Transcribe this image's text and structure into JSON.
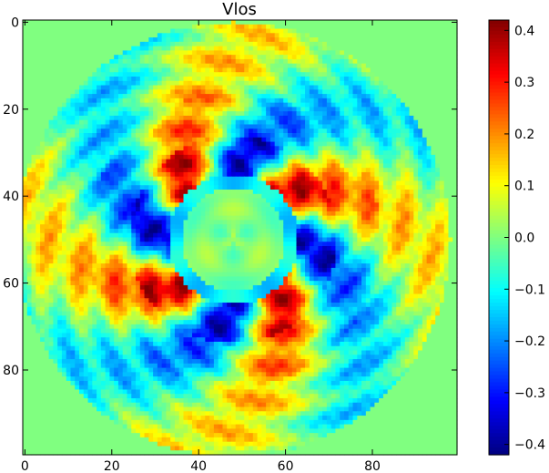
{
  "chart_data": {
    "type": "heatmap",
    "title": "Vlos",
    "xlabel": "",
    "ylabel": "",
    "grid_size": [
      100,
      100
    ],
    "x_ticks": [
      0,
      20,
      40,
      60,
      80
    ],
    "y_ticks": [
      0,
      20,
      40,
      60,
      80
    ],
    "xlim": [
      -0.5,
      99.5
    ],
    "ylim": [
      99.5,
      -0.5
    ],
    "y_axis_inverted": true,
    "background_value": 0.0,
    "colormap": "jet",
    "colorbar": {
      "range": [
        -0.42,
        0.42
      ],
      "ticks": [
        -0.4,
        -0.3,
        -0.2,
        -0.1,
        0.0,
        0.1,
        0.2,
        0.3,
        0.4
      ],
      "tick_labels": [
        "−0.4",
        "−0.3",
        "−0.2",
        "−0.1",
        "0.0",
        "0.1",
        "0.2",
        "0.3",
        "0.4"
      ]
    },
    "structure": {
      "center": [
        48,
        50
      ],
      "outer_disk_radius": 50,
      "inner_blank_radius": 12,
      "inner_ring_radius": 14.5,
      "pattern": "petal-like rosette with alternating positive (yellow/red) and negative (blue) lobes, strongest (|v|≈0.35) near r≈15–22, weaker (|v|≈0.1–0.2) toward the rim"
    },
    "colors": {
      "background_green": "#7FFF7F",
      "axis": "#000000"
    }
  }
}
